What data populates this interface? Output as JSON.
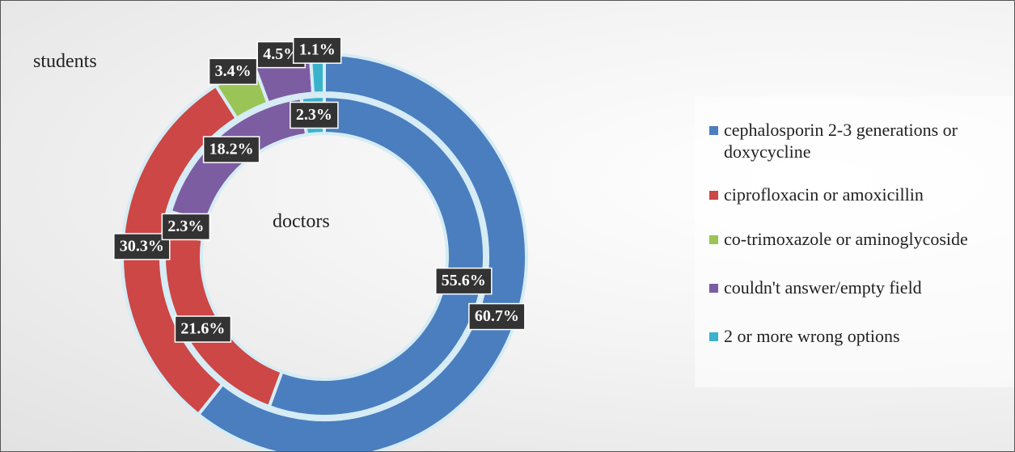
{
  "chart_data": {
    "type": "doughnut",
    "categories": [
      "cephalosporin 2-3 generations or doxycycline",
      "ciprofloxacin or amoxicillin",
      "co-trimoxazole or aminoglycoside",
      "couldn't answer/empty field",
      "2 or more wrong options"
    ],
    "colors": [
      "#4a7ebf",
      "#cc4745",
      "#9bc456",
      "#7d5da2",
      "#3bb2cc"
    ],
    "series": [
      {
        "name": "students",
        "values": [
          60.7,
          30.3,
          3.4,
          4.5,
          1.1
        ],
        "value_labels": [
          "60.7%",
          "30.3%",
          "3.4%",
          "4.5%",
          "1.1%"
        ]
      },
      {
        "name": "doctors",
        "values": [
          55.6,
          21.6,
          2.3,
          18.2,
          2.3
        ],
        "value_labels": [
          "55.6%",
          "21.6%",
          "2.3%",
          "18.2%",
          "2.3%"
        ]
      }
    ]
  }
}
